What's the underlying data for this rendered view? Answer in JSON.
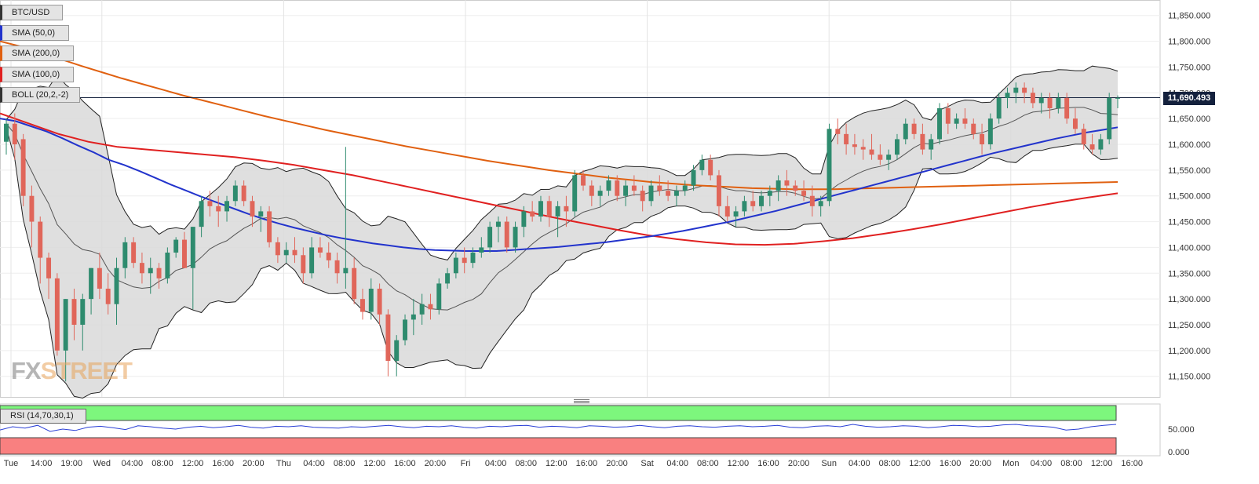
{
  "symbol": "BTC/USD",
  "indicators": {
    "sma50": {
      "label": "SMA (50,0)",
      "color": "#2233cc"
    },
    "sma200": {
      "label": "SMA (200,0)",
      "color": "#e06010"
    },
    "sma100": {
      "label": "SMA (100,0)",
      "color": "#e02020"
    },
    "boll": {
      "label": "BOLL (20,2,-2)",
      "color": "#333333"
    }
  },
  "rsi": {
    "label": "RSI (14,70,30,1)",
    "levels": [
      "50.000",
      "0.000"
    ],
    "upper_zone_color": "#7df77d",
    "lower_zone_color": "#f98080"
  },
  "current_price": "11,690.493",
  "brand": {
    "fx": "FX",
    "street": "STREET"
  },
  "colors": {
    "up": "#2e8b6e",
    "down": "#e0665a",
    "grid": "#eeeeee",
    "line": "#14213d"
  },
  "chart_data": {
    "type": "candlestick",
    "ylim": [
      11110,
      11880
    ],
    "y_ticks": [
      "11,150.000",
      "11,200.000",
      "11,250.000",
      "11,300.000",
      "11,350.000",
      "11,400.000",
      "11,450.000",
      "11,500.000",
      "11,550.000",
      "11,600.000",
      "11,650.000",
      "11,700.000",
      "11,750.000",
      "11,800.000",
      "11,850.000"
    ],
    "x_labels": [
      "Tue",
      "14:00",
      "19:00",
      "Wed",
      "04:00",
      "08:00",
      "12:00",
      "16:00",
      "20:00",
      "Thu",
      "04:00",
      "08:00",
      "12:00",
      "16:00",
      "20:00",
      "Fri",
      "04:00",
      "08:00",
      "12:00",
      "16:00",
      "20:00",
      "Sat",
      "04:00",
      "08:00",
      "12:00",
      "16:00",
      "20:00",
      "Sun",
      "04:00",
      "08:00",
      "12:00",
      "16:00",
      "20:00",
      "Mon",
      "04:00",
      "08:00",
      "12:00",
      "16:00"
    ],
    "candles": [
      [
        11605,
        11650,
        11580,
        11640
      ],
      [
        11640,
        11660,
        11570,
        11600
      ],
      [
        11610,
        11620,
        11480,
        11500
      ],
      [
        11500,
        11520,
        11400,
        11450
      ],
      [
        11450,
        11460,
        11330,
        11380
      ],
      [
        11380,
        11390,
        11300,
        11340
      ],
      [
        11340,
        11350,
        11190,
        11200
      ],
      [
        11200,
        11300,
        11140,
        11300
      ],
      [
        11300,
        11320,
        11220,
        11250
      ],
      [
        11250,
        11310,
        11200,
        11300
      ],
      [
        11300,
        11360,
        11270,
        11360
      ],
      [
        11360,
        11390,
        11300,
        11320
      ],
      [
        11320,
        11350,
        11270,
        11290
      ],
      [
        11290,
        11380,
        11250,
        11360
      ],
      [
        11360,
        11420,
        11340,
        11410
      ],
      [
        11410,
        11420,
        11360,
        11370
      ],
      [
        11370,
        11390,
        11330,
        11350
      ],
      [
        11350,
        11380,
        11310,
        11360
      ],
      [
        11360,
        11370,
        11320,
        11340
      ],
      [
        11340,
        11400,
        11330,
        11390
      ],
      [
        11390,
        11420,
        11380,
        11415
      ],
      [
        11415,
        11430,
        11360,
        11360
      ],
      [
        11360,
        11440,
        11280,
        11440
      ],
      [
        11440,
        11500,
        11420,
        11490
      ],
      [
        11490,
        11510,
        11460,
        11480
      ],
      [
        11480,
        11500,
        11440,
        11470
      ],
      [
        11470,
        11500,
        11450,
        11490
      ],
      [
        11490,
        11530,
        11480,
        11520
      ],
      [
        11520,
        11530,
        11480,
        11490
      ],
      [
        11490,
        11500,
        11440,
        11460
      ],
      [
        11460,
        11480,
        11430,
        11470
      ],
      [
        11470,
        11480,
        11400,
        11410
      ],
      [
        11410,
        11420,
        11370,
        11385
      ],
      [
        11385,
        11410,
        11370,
        11395
      ],
      [
        11395,
        11420,
        11370,
        11385
      ],
      [
        11385,
        11400,
        11330,
        11350
      ],
      [
        11350,
        11420,
        11340,
        11400
      ],
      [
        11400,
        11420,
        11380,
        11390
      ],
      [
        11390,
        11410,
        11360,
        11375
      ],
      [
        11375,
        11390,
        11330,
        11350
      ],
      [
        11350,
        11595,
        11320,
        11360
      ],
      [
        11360,
        11380,
        11290,
        11300
      ],
      [
        11300,
        11320,
        11260,
        11275
      ],
      [
        11275,
        11340,
        11260,
        11320
      ],
      [
        11320,
        11330,
        11250,
        11270
      ],
      [
        11270,
        11280,
        11150,
        11180
      ],
      [
        11180,
        11230,
        11150,
        11220
      ],
      [
        11220,
        11270,
        11210,
        11260
      ],
      [
        11260,
        11300,
        11230,
        11270
      ],
      [
        11270,
        11310,
        11250,
        11290
      ],
      [
        11290,
        11310,
        11260,
        11280
      ],
      [
        11280,
        11340,
        11270,
        11330
      ],
      [
        11330,
        11360,
        11320,
        11350
      ],
      [
        11350,
        11390,
        11340,
        11380
      ],
      [
        11380,
        11400,
        11350,
        11370
      ],
      [
        11370,
        11400,
        11360,
        11390
      ],
      [
        11390,
        11420,
        11380,
        11400
      ],
      [
        11400,
        11450,
        11390,
        11440
      ],
      [
        11440,
        11460,
        11410,
        11450
      ],
      [
        11450,
        11460,
        11390,
        11400
      ],
      [
        11400,
        11450,
        11390,
        11440
      ],
      [
        11440,
        11480,
        11420,
        11470
      ],
      [
        11470,
        11490,
        11450,
        11460
      ],
      [
        11460,
        11500,
        11450,
        11490
      ],
      [
        11490,
        11500,
        11440,
        11460
      ],
      [
        11460,
        11490,
        11420,
        11480
      ],
      [
        11480,
        11500,
        11440,
        11470
      ],
      [
        11470,
        11550,
        11460,
        11540
      ],
      [
        11540,
        11550,
        11510,
        11520
      ],
      [
        11520,
        11530,
        11480,
        11500
      ],
      [
        11500,
        11520,
        11480,
        11510
      ],
      [
        11510,
        11540,
        11500,
        11530
      ],
      [
        11530,
        11540,
        11490,
        11500
      ],
      [
        11500,
        11530,
        11480,
        11520
      ],
      [
        11520,
        11540,
        11500,
        11510
      ],
      [
        11510,
        11520,
        11470,
        11490
      ],
      [
        11490,
        11530,
        11480,
        11520
      ],
      [
        11520,
        11540,
        11500,
        11510
      ],
      [
        11510,
        11530,
        11490,
        11500
      ],
      [
        11500,
        11520,
        11480,
        11510
      ],
      [
        11510,
        11530,
        11500,
        11520
      ],
      [
        11520,
        11560,
        11510,
        11550
      ],
      [
        11550,
        11580,
        11540,
        11570
      ],
      [
        11570,
        11580,
        11530,
        11540
      ],
      [
        11540,
        11550,
        11460,
        11480
      ],
      [
        11480,
        11500,
        11450,
        11460
      ],
      [
        11460,
        11480,
        11440,
        11470
      ],
      [
        11470,
        11500,
        11460,
        11490
      ],
      [
        11490,
        11510,
        11470,
        11480
      ],
      [
        11480,
        11510,
        11470,
        11500
      ],
      [
        11500,
        11520,
        11480,
        11510
      ],
      [
        11510,
        11540,
        11490,
        11530
      ],
      [
        11530,
        11550,
        11500,
        11520
      ],
      [
        11520,
        11530,
        11500,
        11510
      ],
      [
        11510,
        11530,
        11490,
        11500
      ],
      [
        11500,
        11520,
        11460,
        11480
      ],
      [
        11480,
        11500,
        11460,
        11490
      ],
      [
        11490,
        11640,
        11480,
        11630
      ],
      [
        11630,
        11650,
        11600,
        11620
      ],
      [
        11620,
        11640,
        11580,
        11600
      ],
      [
        11600,
        11620,
        11580,
        11595
      ],
      [
        11595,
        11610,
        11570,
        11590
      ],
      [
        11590,
        11620,
        11570,
        11580
      ],
      [
        11580,
        11600,
        11560,
        11570
      ],
      [
        11570,
        11590,
        11550,
        11580
      ],
      [
        11580,
        11620,
        11570,
        11610
      ],
      [
        11610,
        11650,
        11600,
        11640
      ],
      [
        11640,
        11650,
        11610,
        11620
      ],
      [
        11620,
        11640,
        11580,
        11590
      ],
      [
        11590,
        11620,
        11570,
        11610
      ],
      [
        11610,
        11680,
        11600,
        11670
      ],
      [
        11670,
        11680,
        11620,
        11640
      ],
      [
        11640,
        11660,
        11630,
        11650
      ],
      [
        11650,
        11670,
        11630,
        11640
      ],
      [
        11640,
        11650,
        11610,
        11620
      ],
      [
        11620,
        11640,
        11580,
        11600
      ],
      [
        11600,
        11660,
        11590,
        11650
      ],
      [
        11650,
        11700,
        11640,
        11690
      ],
      [
        11690,
        11710,
        11670,
        11700
      ],
      [
        11700,
        11720,
        11680,
        11710
      ],
      [
        11710,
        11720,
        11680,
        11700
      ],
      [
        11700,
        11710,
        11670,
        11680
      ],
      [
        11680,
        11700,
        11660,
        11690
      ],
      [
        11690,
        11700,
        11650,
        11670
      ],
      [
        11670,
        11700,
        11660,
        11690
      ],
      [
        11690,
        11700,
        11640,
        11650
      ],
      [
        11650,
        11670,
        11620,
        11630
      ],
      [
        11630,
        11640,
        11590,
        11600
      ],
      [
        11600,
        11620,
        11580,
        11590
      ],
      [
        11590,
        11620,
        11580,
        11610
      ],
      [
        11610,
        11700,
        11600,
        11690
      ],
      [
        11690,
        11695,
        11670,
        11690
      ]
    ],
    "sma50": [
      11650,
      11645,
      11635,
      11625,
      11612,
      11598,
      11585,
      11570,
      11560,
      11548,
      11535,
      11522,
      11510,
      11498,
      11487,
      11476,
      11465,
      11455,
      11446,
      11438,
      11431,
      11424,
      11418,
      11413,
      11408,
      11404,
      11400,
      11397,
      11395,
      11394,
      11393,
      11393,
      11393,
      11395,
      11397,
      11399,
      11401,
      11404,
      11407,
      11410,
      11414,
      11418,
      11422,
      11427,
      11432,
      11438,
      11444,
      11450,
      11457,
      11464,
      11471,
      11479,
      11487,
      11495,
      11503,
      11511,
      11519,
      11527,
      11535,
      11543,
      11551,
      11559,
      11567,
      11575,
      11583,
      11590,
      11597,
      11604,
      11611,
      11617,
      11623,
      11628,
      11633
    ],
    "sma200": [
      11800,
      11790,
      11778,
      11765,
      11752,
      11740,
      11728,
      11717,
      11706,
      11695,
      11685,
      11675,
      11665,
      11655,
      11646,
      11637,
      11628,
      11620,
      11612,
      11604,
      11596,
      11589,
      11582,
      11575,
      11568,
      11562,
      11556,
      11550,
      11545,
      11540,
      11535,
      11531,
      11527,
      11524,
      11521,
      11519,
      11517,
      11515,
      11514,
      11513,
      11513,
      11513,
      11514,
      11515,
      11516,
      11517,
      11518,
      11519,
      11520,
      11521,
      11522,
      11523,
      11524,
      11525,
      11526,
      11527
    ],
    "sma100": [
      11660,
      11640,
      11620,
      11605,
      11595,
      11590,
      11585,
      11580,
      11575,
      11568,
      11560,
      11550,
      11540,
      11528,
      11516,
      11504,
      11492,
      11480,
      11468,
      11456,
      11445,
      11434,
      11424,
      11416,
      11410,
      11406,
      11405,
      11407,
      11412,
      11418,
      11426,
      11435,
      11445,
      11456,
      11467,
      11478,
      11488,
      11497,
      11505
    ],
    "rsi": [
      48,
      55,
      52,
      58,
      45,
      50,
      47,
      54,
      56,
      53,
      49,
      57,
      55,
      52,
      50,
      54,
      56,
      53,
      55,
      58,
      54,
      52,
      56,
      55,
      57,
      54,
      53,
      52,
      55,
      54,
      56,
      58,
      55,
      53,
      56,
      55,
      57,
      54,
      52,
      56,
      55,
      57,
      58,
      54,
      56,
      55,
      53,
      57,
      56,
      54,
      55,
      58,
      55,
      53,
      56,
      57,
      55,
      54,
      56,
      57,
      55,
      56,
      58,
      54,
      53,
      56,
      57,
      55,
      60,
      56,
      54,
      55,
      57,
      56,
      53,
      55,
      58,
      57,
      55,
      56,
      59,
      60,
      57,
      56,
      54,
      48,
      50,
      55,
      58,
      60
    ]
  }
}
